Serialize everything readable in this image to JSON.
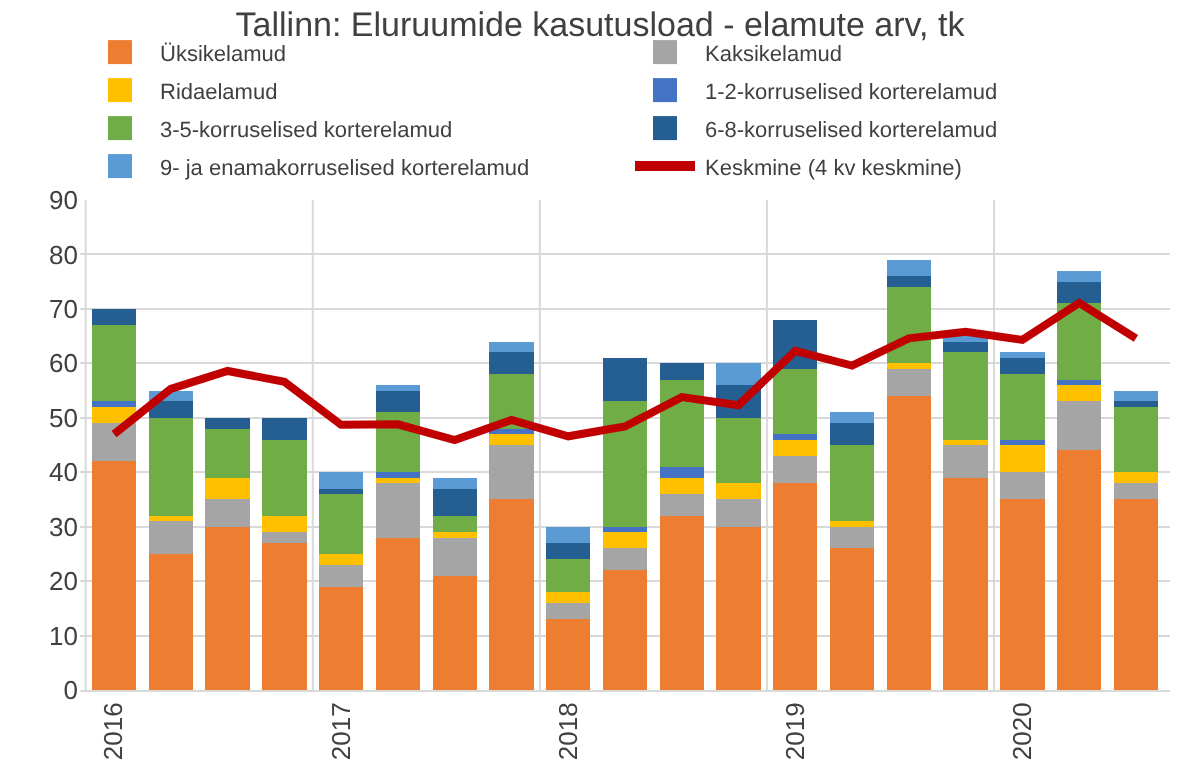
{
  "chart_data": {
    "type": "bar",
    "title": "Tallinn: Eluruumide kasutusload - elamute arv, tk",
    "stacked": true,
    "categories": [
      "2016",
      null,
      null,
      null,
      "2017",
      null,
      null,
      null,
      "2018",
      null,
      null,
      null,
      "2019",
      null,
      null,
      null,
      "2020",
      null,
      null
    ],
    "series": [
      {
        "name": "Üksikelamud",
        "color": "#ed7d31",
        "values": [
          42,
          25,
          30,
          27,
          19,
          28,
          21,
          35,
          13,
          22,
          32,
          30,
          38,
          26,
          54,
          39,
          35,
          44,
          35
        ]
      },
      {
        "name": "Kaksikelamud",
        "color": "#a5a5a5",
        "values": [
          7,
          6,
          5,
          2,
          4,
          10,
          7,
          10,
          3,
          4,
          4,
          5,
          5,
          4,
          5,
          6,
          5,
          9,
          3
        ]
      },
      {
        "name": "Ridaelamud",
        "color": "#ffc000",
        "values": [
          3,
          1,
          4,
          3,
          2,
          1,
          1,
          2,
          2,
          3,
          3,
          3,
          3,
          1,
          1,
          1,
          5,
          3,
          2
        ]
      },
      {
        "name": "1-2-korruselised korterelamud",
        "color": "#4472c4",
        "values": [
          1,
          0,
          0,
          0,
          0,
          1,
          0,
          1,
          0,
          1,
          2,
          0,
          1,
          0,
          0,
          0,
          1,
          1,
          0
        ]
      },
      {
        "name": "3-5-korruselised korterelamud",
        "color": "#70ad47",
        "values": [
          14,
          18,
          9,
          14,
          11,
          11,
          3,
          10,
          6,
          23,
          16,
          12,
          12,
          14,
          14,
          16,
          12,
          14,
          12
        ]
      },
      {
        "name": "6-8-korruselised korterelamud",
        "color": "#255e91",
        "values": [
          3,
          3,
          2,
          4,
          1,
          4,
          5,
          4,
          3,
          8,
          3,
          6,
          9,
          4,
          2,
          2,
          3,
          4,
          1
        ]
      },
      {
        "name": "9- ja enamakorruselised korterelamud",
        "color": "#5b9bd5",
        "values": [
          0,
          2,
          0,
          0,
          3,
          1,
          2,
          2,
          3,
          0,
          0,
          4,
          0,
          2,
          3,
          1,
          1,
          2,
          2
        ]
      },
      {
        "name": "Keskmine (4 kv keskmine)",
        "type": "line",
        "color": "#c00000",
        "line_style": "solid",
        "values": [
          47,
          55.3,
          58.6,
          56.6,
          48.7,
          48.8,
          45.9,
          49.6,
          46.6,
          48.4,
          53.8,
          52.3,
          62.3,
          59.6,
          64.6,
          65.8,
          64.3,
          71.1,
          64.6
        ]
      }
    ],
    "ylim": [
      0,
      90
    ],
    "yticks": [
      0,
      10,
      20,
      30,
      40,
      50,
      60,
      70,
      80,
      90
    ],
    "grid": true,
    "legend": "top",
    "marker": "none"
  }
}
